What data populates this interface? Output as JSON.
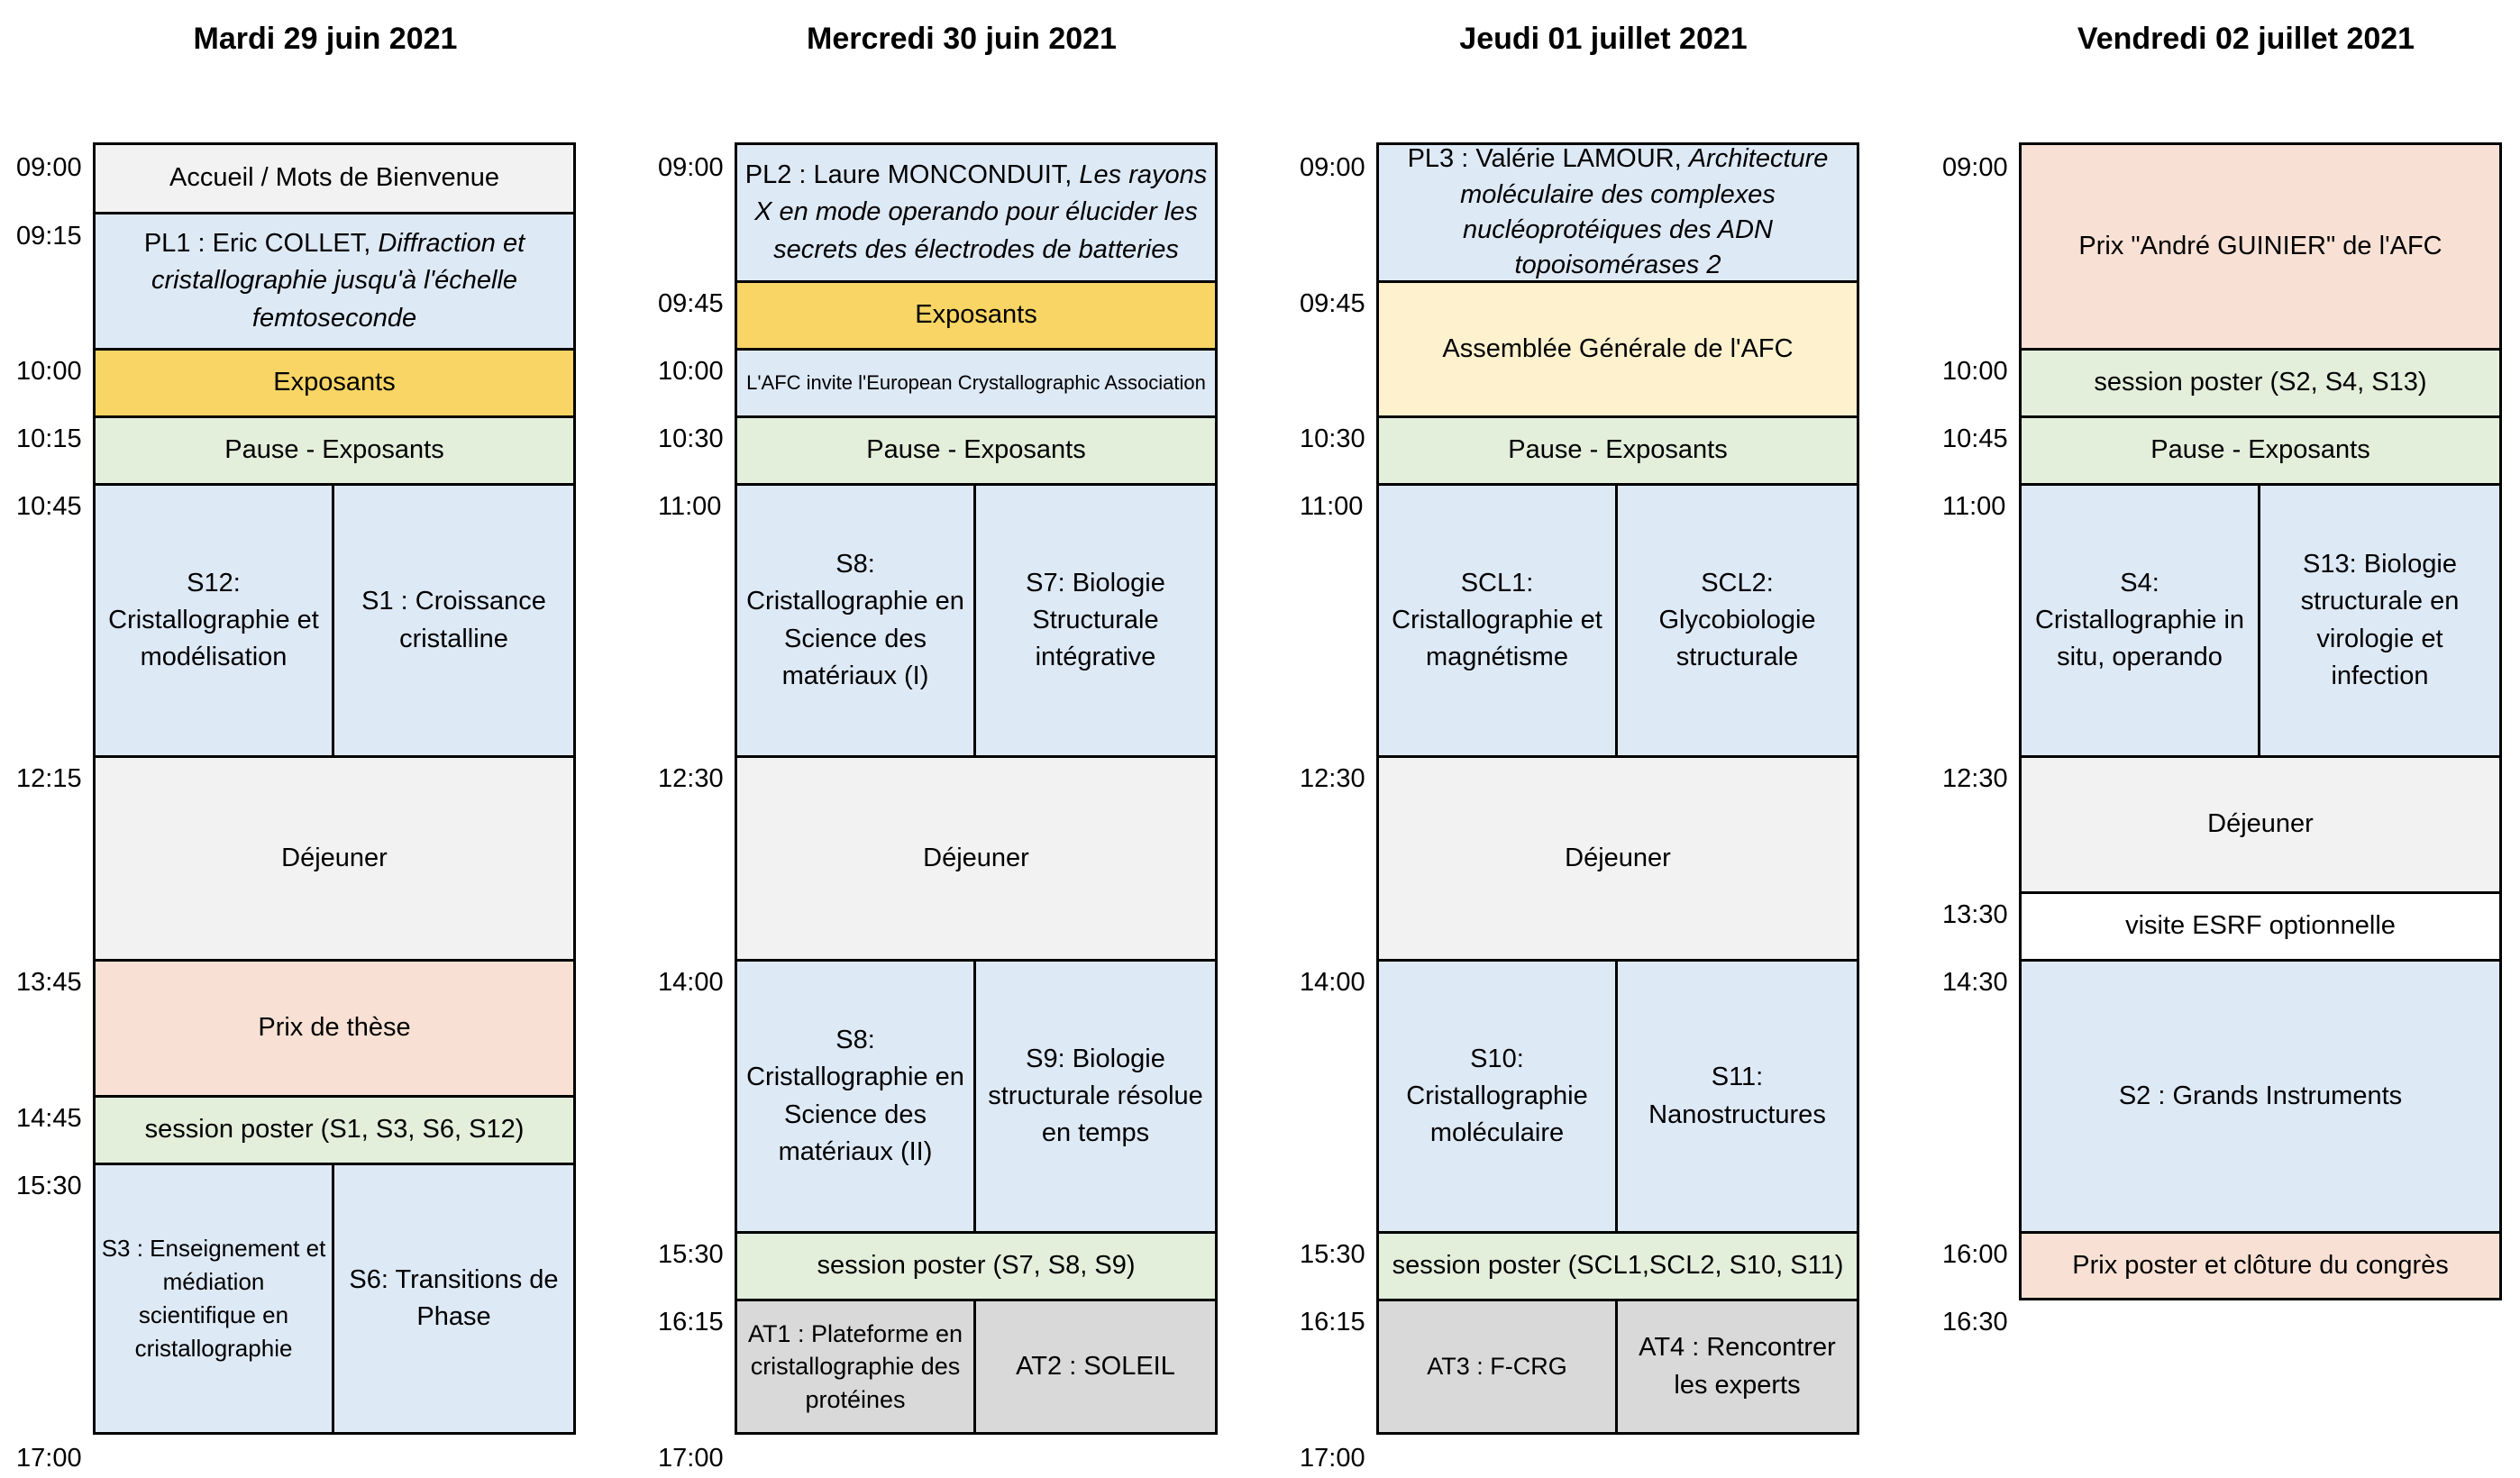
{
  "days": [
    {
      "title": "Mardi 29 juin 2021",
      "times": [
        "09:00",
        "09:15",
        "10:00",
        "10:15",
        "10:45",
        "12:15",
        "13:45",
        "14:45",
        "15:30",
        "17:00"
      ],
      "blocks": [
        {
          "text": "Accueil / Mots de Bienvenue"
        },
        {
          "pre": "PL1 : Eric COLLET,  ",
          "italic": "Diffraction et cristallographie jusqu'à l'échelle femtoseconde"
        },
        {
          "text": "Exposants"
        },
        {
          "text": "Pause - Exposants"
        },
        {
          "left": "S12: Cristallographie et modélisation",
          "right": "S1 : Croissance cristalline"
        },
        {
          "text": "Déjeuner"
        },
        {
          "text": "Prix de thèse"
        },
        {
          "text": "session poster (S1, S3, S6,  S12)"
        },
        {
          "left": "S3 : Enseignement et médiation scientifique en cristallographie",
          "right": "S6: Transitions de Phase"
        }
      ]
    },
    {
      "title": "Mercredi 30 juin 2021",
      "times": [
        "09:00",
        "09:45",
        "10:00",
        "10:30",
        "11:00",
        "12:30",
        "14:00",
        "15:30",
        "16:15",
        "17:00"
      ],
      "blocks": [
        {
          "pre": "PL2 : Laure MONCONDUIT, ",
          "italic": "Les rayons X en mode operando pour élucider les secrets des électrodes de batteries"
        },
        {
          "text": "Exposants"
        },
        {
          "text": "L'AFC invite l'European Crystallographic Association"
        },
        {
          "text": "Pause - Exposants"
        },
        {
          "left": "S8: Cristallographie en Science des matériaux (I)",
          "right": "S7: Biologie Structurale intégrative"
        },
        {
          "text": "Déjeuner"
        },
        {
          "left": "S8: Cristallographie en Science des matériaux (II)",
          "right": "S9: Biologie structurale résolue en temps"
        },
        {
          "text": "session poster (S7, S8, S9)"
        },
        {
          "left": "AT1 : Plateforme en cristallographie des protéines",
          "right": "AT2 : SOLEIL"
        }
      ]
    },
    {
      "title": "Jeudi 01 juillet 2021",
      "times": [
        "09:00",
        "09:45",
        "10:30",
        "11:00",
        "12:30",
        "14:00",
        "15:30",
        "16:15",
        "17:00"
      ],
      "blocks": [
        {
          "pre": "PL3 : Valérie LAMOUR, ",
          "italic": "Architecture moléculaire des complexes nucléoprotéiques des ADN topoisomérases 2"
        },
        {
          "text": "Assemblée Générale de l'AFC"
        },
        {
          "text": "Pause - Exposants"
        },
        {
          "left": "SCL1: Cristallographie et magnétisme",
          "right": "SCL2: Glycobiologie structurale"
        },
        {
          "text": "Déjeuner"
        },
        {
          "left": "S10: Cristallographie moléculaire",
          "right": "S11: Nanostructures"
        },
        {
          "text": "session poster (SCL1,SCL2, S10, S11)"
        },
        {
          "left": "AT3 : F-CRG",
          "right": "AT4 : Rencontrer les experts"
        }
      ]
    },
    {
      "title": "Vendredi 02 juillet 2021",
      "times": [
        "09:00",
        "10:00",
        "10:45",
        "11:00",
        "12:30",
        "13:30",
        "14:30",
        "16:00",
        "16:30"
      ],
      "blocks": [
        {
          "text": "Prix \"André GUINIER\" de l'AFC"
        },
        {
          "text": "session poster (S2, S4, S13)"
        },
        {
          "text": "Pause - Exposants"
        },
        {
          "left": "S4: Cristallographie in situ, operando",
          "right": "S13: Biologie structurale en virologie et infection"
        },
        {
          "text": "Déjeuner"
        },
        {
          "text": "visite ESRF optionnelle"
        },
        {
          "text": "S2 : Grands Instruments"
        },
        {
          "text": "Prix poster et clôture du congrès"
        }
      ]
    }
  ]
}
